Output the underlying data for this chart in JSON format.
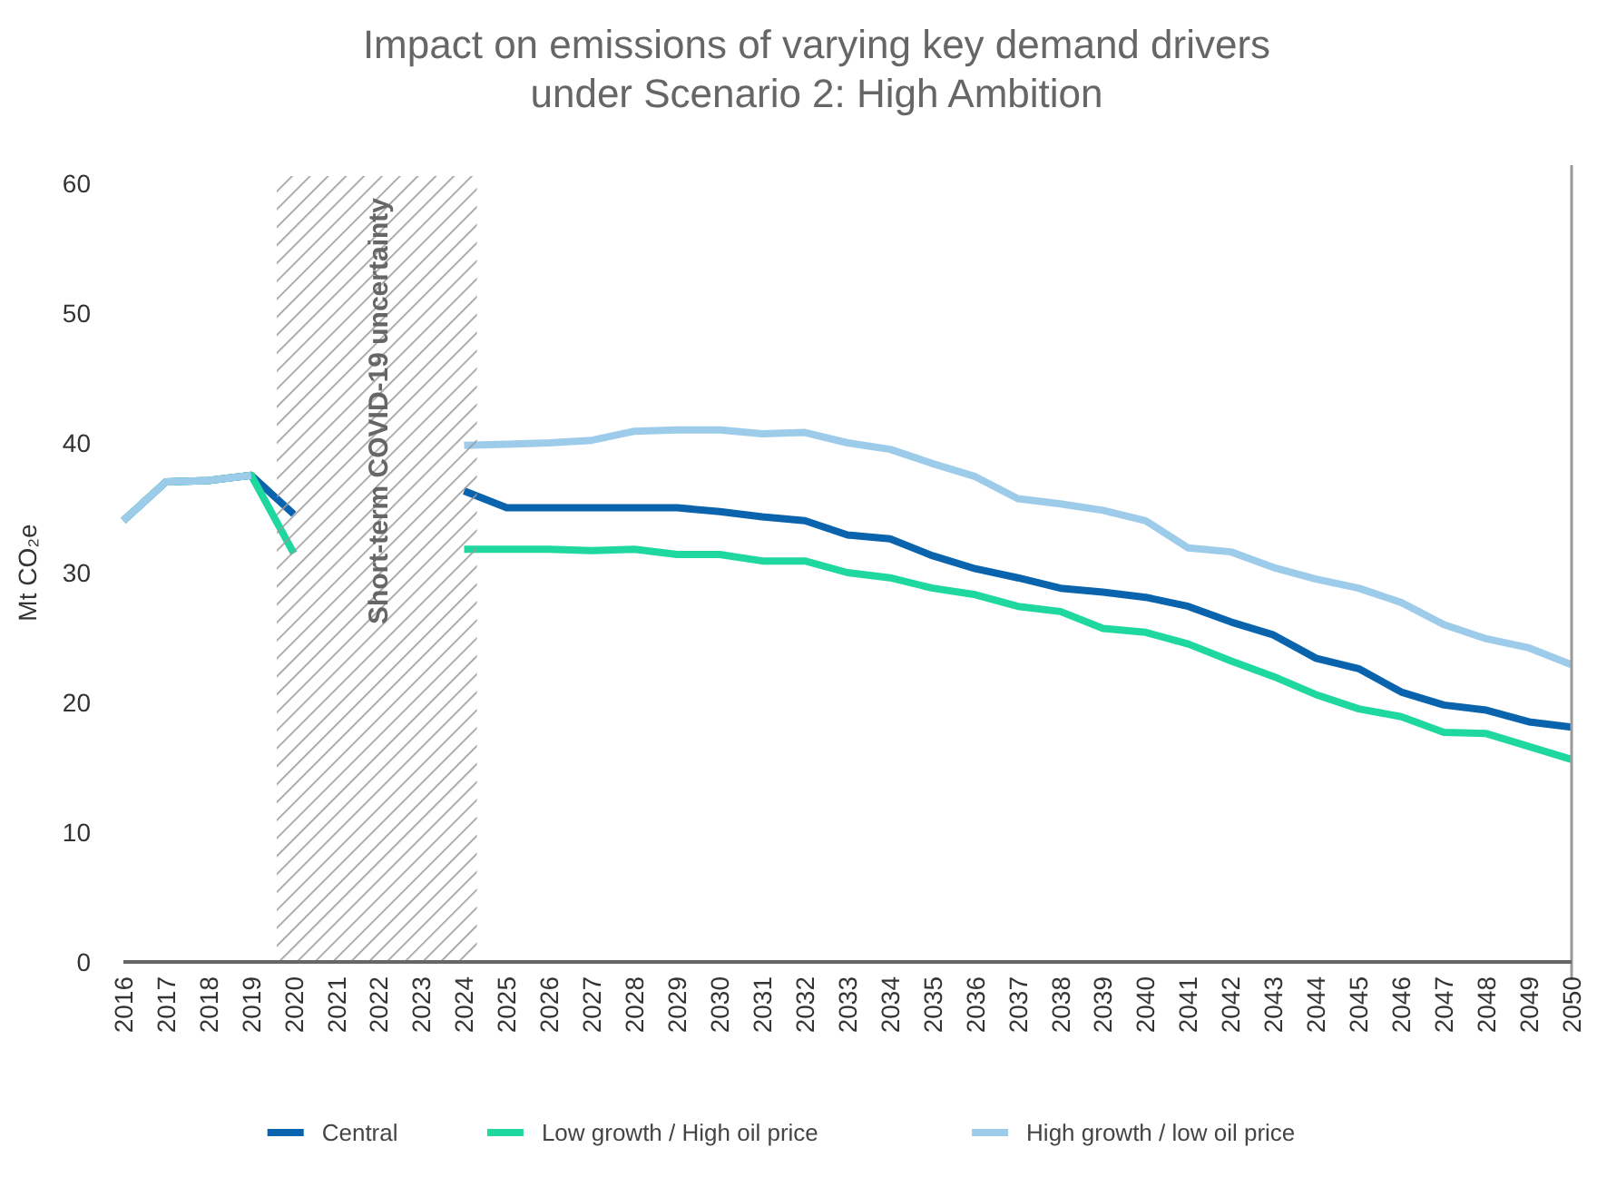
{
  "chart_data": {
    "type": "line",
    "title": "Impact on emissions of varying key demand drivers under Scenario 2: High Ambition",
    "ylabel": "Mt CO₂e",
    "x": [
      2016,
      2017,
      2018,
      2019,
      2020,
      2021,
      2022,
      2023,
      2024,
      2025,
      2026,
      2027,
      2028,
      2029,
      2030,
      2031,
      2032,
      2033,
      2034,
      2035,
      2036,
      2037,
      2038,
      2039,
      2040,
      2041,
      2042,
      2043,
      2044,
      2045,
      2046,
      2047,
      2048,
      2049,
      2050
    ],
    "xlim": [
      2016,
      2050
    ],
    "xticks": [
      2016,
      2017,
      2018,
      2019,
      2020,
      2021,
      2022,
      2023,
      2024,
      2025,
      2026,
      2027,
      2028,
      2029,
      2030,
      2031,
      2032,
      2033,
      2034,
      2035,
      2036,
      2037,
      2038,
      2039,
      2040,
      2041,
      2042,
      2043,
      2044,
      2045,
      2046,
      2047,
      2048,
      2049,
      2050
    ],
    "ylim": [
      0,
      60
    ],
    "yticks": [
      0,
      10,
      20,
      30,
      40,
      50,
      60
    ],
    "grid": false,
    "legend": "bottom",
    "line_style": "solid",
    "marker": "none",
    "series": [
      {
        "name": "Central",
        "color": "#0a64ad",
        "values": [
          34,
          37,
          37.1,
          37.5,
          34.5,
          null,
          null,
          null,
          36.3,
          35,
          35,
          35,
          35,
          35,
          34.7,
          34.3,
          34,
          32.9,
          32.6,
          31.3,
          30.3,
          29.6,
          28.8,
          28.5,
          28.1,
          27.4,
          26.2,
          25.2,
          23.4,
          22.6,
          20.8,
          19.8,
          19.4,
          18.5,
          18.1
        ]
      },
      {
        "name": "Low growth / High oil price",
        "color": "#1ed8a0",
        "values": [
          34,
          37,
          37.1,
          37.5,
          31.5,
          null,
          null,
          null,
          31.8,
          31.8,
          31.8,
          31.7,
          31.8,
          31.4,
          31.4,
          30.9,
          30.9,
          30,
          29.6,
          28.8,
          28.3,
          27.4,
          27,
          25.7,
          25.4,
          24.5,
          23.2,
          22,
          20.6,
          19.5,
          18.9,
          17.7,
          17.6,
          16.6,
          15.6
        ]
      },
      {
        "name": "High growth / low oil price",
        "color": "#9dcbea",
        "values": [
          34,
          37,
          37.1,
          37.5,
          null,
          null,
          null,
          null,
          39.8,
          39.9,
          40,
          40.2,
          40.9,
          41,
          41,
          40.7,
          40.8,
          40,
          39.5,
          38.4,
          37.4,
          35.7,
          35.3,
          34.8,
          34,
          31.9,
          31.6,
          30.4,
          29.5,
          28.8,
          27.7,
          26,
          24.9,
          24.2,
          22.9
        ]
      }
    ],
    "bands": [
      {
        "axis": "x",
        "from": 2019.6,
        "to": 2024.3,
        "label": "Short-term COVID-19 uncertainty",
        "color": "#999999"
      }
    ],
    "ref_lines": [
      {
        "axis": "x",
        "value": 2050,
        "color": "#999999"
      }
    ]
  }
}
